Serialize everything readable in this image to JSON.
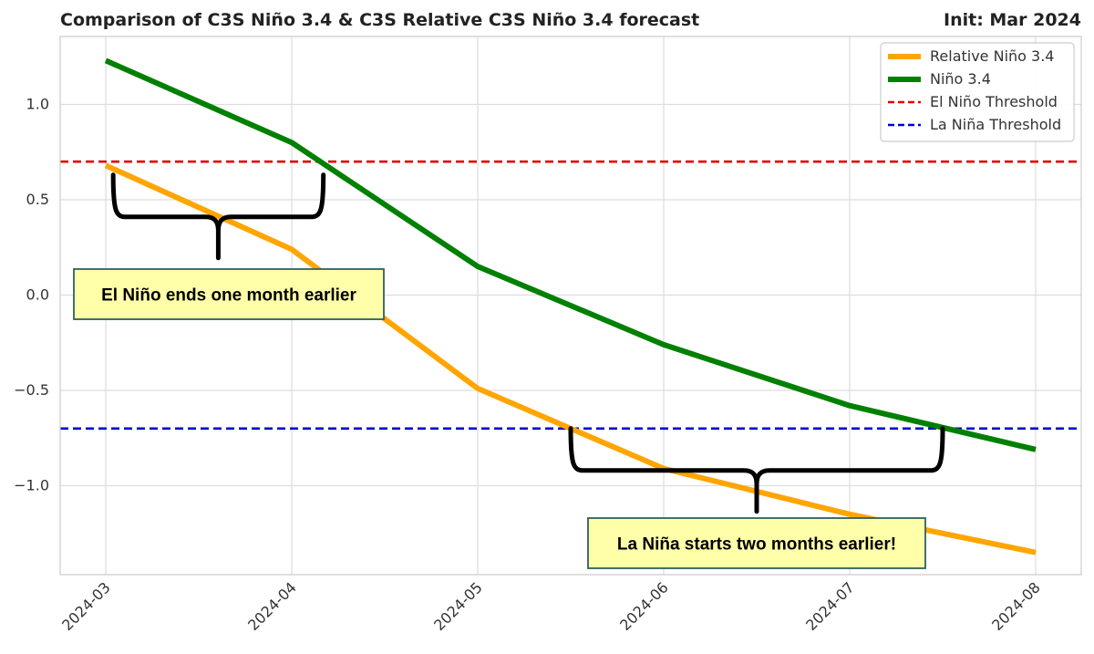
{
  "chart_data": {
    "type": "line",
    "title": "Comparison of C3S Niño 3.4 & C3S Relative C3S Niño 3.4 forecast",
    "title_right": "Init: Mar 2024",
    "xlabel": "",
    "ylabel": "",
    "categories": [
      "2024-03",
      "2024-04",
      "2024-05",
      "2024-06",
      "2024-07",
      "2024-08"
    ],
    "series": [
      {
        "name": "Relative Niño 3.4",
        "color": "#ffa500",
        "values": [
          0.68,
          0.24,
          -0.49,
          -0.91,
          -1.15,
          -1.35
        ]
      },
      {
        "name": "Niño 3.4",
        "color": "#008000",
        "values": [
          1.23,
          0.8,
          0.15,
          -0.26,
          -0.58,
          -0.81
        ]
      }
    ],
    "thresholds": [
      {
        "name": "El Niño Threshold",
        "value": 0.7,
        "color": "#dd0000",
        "style": "dashed"
      },
      {
        "name": "La Niña Threshold",
        "value": -0.7,
        "color": "#0000cc",
        "style": "dashed"
      }
    ],
    "yticks": [
      1.0,
      0.5,
      0.0,
      -0.5,
      -1.0
    ],
    "ytick_labels": [
      "1.0",
      "0.5",
      "0.0",
      "−0.5",
      "−1.0"
    ],
    "ylim": [
      -1.48,
      1.36
    ],
    "xlim_months": [
      -0.25,
      5.2
    ],
    "grid": true,
    "legend_position": "top-right",
    "annotations": [
      {
        "text": "El Niño ends one month earlier",
        "from_month": 0.04,
        "to_month": 1.17,
        "brace_level": 0.41,
        "box_fill": "#ffffaa"
      },
      {
        "text": "La Niña starts two months earlier!",
        "from_month": 2.5,
        "to_month": 4.5,
        "brace_level": -0.92,
        "box_fill": "#ffffaa"
      }
    ]
  }
}
